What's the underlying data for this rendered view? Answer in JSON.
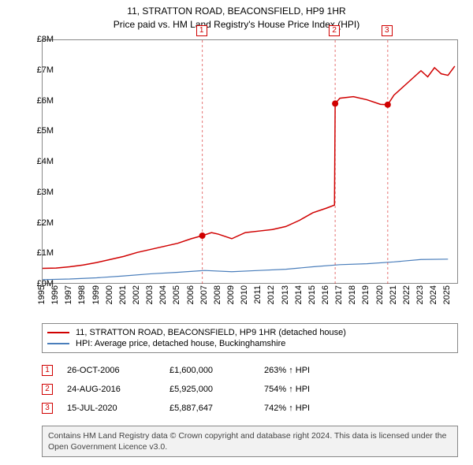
{
  "title_line1": "11, STRATTON ROAD, BEACONSFIELD, HP9 1HR",
  "title_line2": "Price paid vs. HM Land Registry's House Price Index (HPI)",
  "chart": {
    "type": "line",
    "background_color": "#ffffff",
    "border_color": "#888888",
    "ylim": [
      0,
      8000000
    ],
    "ytick_step": 1000000,
    "ylabels": [
      "£0M",
      "£1M",
      "£2M",
      "£3M",
      "£4M",
      "£5M",
      "£6M",
      "£7M",
      "£8M"
    ],
    "xlim": [
      1995,
      2025.8
    ],
    "xlabels": [
      "1995",
      "1996",
      "1997",
      "1998",
      "1999",
      "2000",
      "2001",
      "2002",
      "2003",
      "2004",
      "2005",
      "2006",
      "2007",
      "2008",
      "2009",
      "2010",
      "2011",
      "2012",
      "2013",
      "2014",
      "2015",
      "2016",
      "2017",
      "2018",
      "2019",
      "2020",
      "2021",
      "2022",
      "2023",
      "2024",
      "2025"
    ],
    "series": [
      {
        "name": "11, STRATTON ROAD, BEACONSFIELD, HP9 1HR (detached house)",
        "color": "#d00000",
        "line_width": 1.5,
        "points": [
          [
            1995,
            530000
          ],
          [
            1996,
            540000
          ],
          [
            1997,
            580000
          ],
          [
            1998,
            640000
          ],
          [
            1999,
            720000
          ],
          [
            2000,
            820000
          ],
          [
            2001,
            920000
          ],
          [
            2002,
            1050000
          ],
          [
            2003,
            1150000
          ],
          [
            2004,
            1250000
          ],
          [
            2005,
            1350000
          ],
          [
            2006,
            1500000
          ],
          [
            2006.82,
            1600000
          ],
          [
            2007.5,
            1700000
          ],
          [
            2008,
            1650000
          ],
          [
            2009,
            1500000
          ],
          [
            2010,
            1700000
          ],
          [
            2011,
            1750000
          ],
          [
            2012,
            1800000
          ],
          [
            2013,
            1900000
          ],
          [
            2014,
            2100000
          ],
          [
            2015,
            2350000
          ],
          [
            2016,
            2500000
          ],
          [
            2016.6,
            2600000
          ],
          [
            2016.65,
            5925000
          ],
          [
            2017,
            6100000
          ],
          [
            2018,
            6150000
          ],
          [
            2019,
            6050000
          ],
          [
            2020,
            5900000
          ],
          [
            2020.54,
            5887647
          ],
          [
            2021,
            6200000
          ],
          [
            2022,
            6600000
          ],
          [
            2023,
            7000000
          ],
          [
            2023.5,
            6800000
          ],
          [
            2024,
            7100000
          ],
          [
            2024.5,
            6900000
          ],
          [
            2025,
            6850000
          ],
          [
            2025.5,
            7150000
          ]
        ]
      },
      {
        "name": "HPI: Average price, detached house, Buckinghamshire",
        "color": "#4a7ebb",
        "line_width": 1.2,
        "points": [
          [
            1995,
            160000
          ],
          [
            1997,
            180000
          ],
          [
            1999,
            220000
          ],
          [
            2001,
            280000
          ],
          [
            2003,
            350000
          ],
          [
            2005,
            400000
          ],
          [
            2007,
            460000
          ],
          [
            2009,
            420000
          ],
          [
            2011,
            460000
          ],
          [
            2013,
            500000
          ],
          [
            2015,
            580000
          ],
          [
            2017,
            650000
          ],
          [
            2019,
            680000
          ],
          [
            2021,
            740000
          ],
          [
            2023,
            820000
          ],
          [
            2025,
            830000
          ]
        ]
      }
    ],
    "event_markers": [
      {
        "n": "1",
        "x": 2006.82,
        "y": 1600000
      },
      {
        "n": "2",
        "x": 2016.65,
        "y": 5925000
      },
      {
        "n": "3",
        "x": 2020.54,
        "y": 5887647
      }
    ]
  },
  "legend": {
    "items": [
      {
        "label": "11, STRATTON ROAD, BEACONSFIELD, HP9 1HR (detached house)",
        "color": "#d00000"
      },
      {
        "label": "HPI: Average price, detached house, Buckinghamshire",
        "color": "#4a7ebb"
      }
    ]
  },
  "sales": [
    {
      "n": "1",
      "date": "26-OCT-2006",
      "price": "£1,600,000",
      "hpi": "263% ↑ HPI"
    },
    {
      "n": "2",
      "date": "24-AUG-2016",
      "price": "£5,925,000",
      "hpi": "754% ↑ HPI"
    },
    {
      "n": "3",
      "date": "15-JUL-2020",
      "price": "£5,887,647",
      "hpi": "742% ↑ HPI"
    }
  ],
  "attribution": "Contains HM Land Registry data © Crown copyright and database right 2024. This data is licensed under the Open Government Licence v3.0."
}
